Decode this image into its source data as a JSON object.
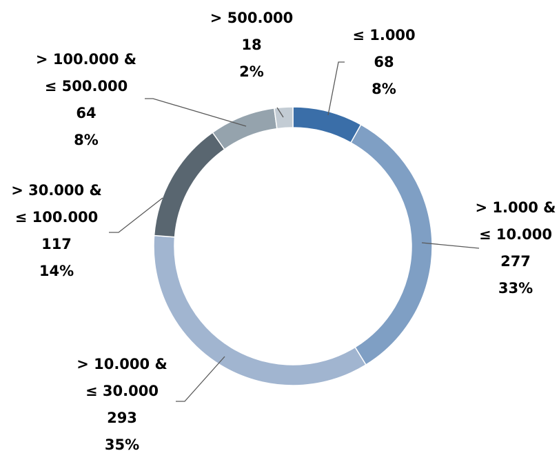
{
  "chart_data": {
    "type": "donut",
    "categories": [
      [
        "≤ 1.000"
      ],
      [
        "> 1.000 &",
        "≤ 10.000"
      ],
      [
        "> 10.000 &",
        "≤ 30.000"
      ],
      [
        "> 30.000 &",
        "≤ 100.000"
      ],
      [
        "> 100.000 &",
        "≤ 500.000"
      ],
      [
        "> 500.000"
      ]
    ],
    "values": [
      68,
      277,
      293,
      117,
      64,
      18
    ],
    "percent_labels": [
      "8%",
      "33%",
      "35%",
      "14%",
      "8%",
      "2%"
    ],
    "colors": [
      "#3a6ea8",
      "#7f9fc4",
      "#a1b5d0",
      "#596670",
      "#95a3ad",
      "#c3ccd4"
    ]
  }
}
